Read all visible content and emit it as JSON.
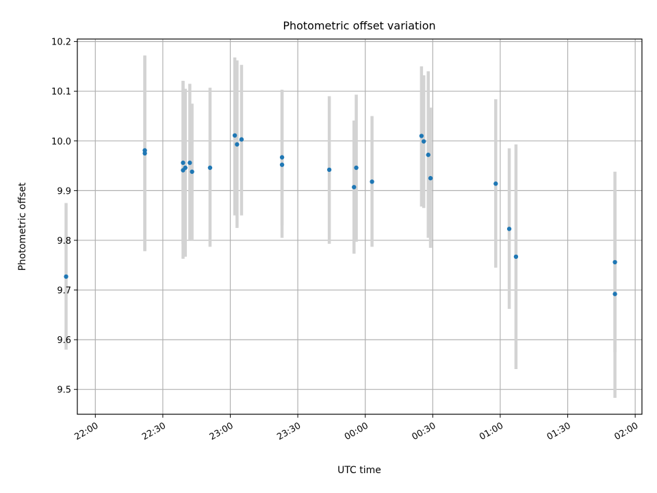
{
  "chart_data": {
    "type": "scatter",
    "title": "Photometric offset variation",
    "xlabel": "UTC time",
    "ylabel": "Photometric offset",
    "grid": true,
    "x_axis": {
      "unit": "UTC time",
      "range": [
        "21:52",
        "02:03"
      ],
      "ticks": [
        "22:00",
        "22:30",
        "23:00",
        "23:30",
        "00:00",
        "00:30",
        "01:00",
        "01:30",
        "02:00"
      ]
    },
    "y_axis": {
      "range": [
        9.45,
        10.205
      ],
      "ticks": [
        "9.5",
        "9.6",
        "9.7",
        "9.8",
        "9.9",
        "10.0",
        "10.1",
        "10.2"
      ]
    },
    "marker_color": "#1f77b4",
    "errorbar_color": "#d3d3d3",
    "points": [
      {
        "time": "21:47",
        "y": 9.727,
        "lo": 9.58,
        "hi": 9.875
      },
      {
        "time": "22:22",
        "y": 9.981,
        "lo": 9.778,
        "hi": 10.172
      },
      {
        "time": "22:22",
        "y": 9.975,
        "lo": 9.78,
        "hi": 10.17
      },
      {
        "time": "22:39",
        "y": 9.956,
        "lo": 9.793,
        "hi": 10.12
      },
      {
        "time": "22:39",
        "y": 9.941,
        "lo": 9.763,
        "hi": 10.121
      },
      {
        "time": "22:40",
        "y": 9.946,
        "lo": 9.767,
        "hi": 10.105
      },
      {
        "time": "22:42",
        "y": 9.956,
        "lo": 9.8,
        "hi": 10.115
      },
      {
        "time": "22:43",
        "y": 9.938,
        "lo": 9.8,
        "hi": 10.075
      },
      {
        "time": "22:51",
        "y": 9.946,
        "lo": 9.787,
        "hi": 10.107
      },
      {
        "time": "23:02",
        "y": 10.011,
        "lo": 9.85,
        "hi": 10.168
      },
      {
        "time": "23:03",
        "y": 9.993,
        "lo": 9.825,
        "hi": 10.162
      },
      {
        "time": "23:05",
        "y": 10.003,
        "lo": 9.85,
        "hi": 10.153
      },
      {
        "time": "23:23",
        "y": 9.967,
        "lo": 9.83,
        "hi": 10.103
      },
      {
        "time": "23:23",
        "y": 9.952,
        "lo": 9.805,
        "hi": 10.1
      },
      {
        "time": "23:44",
        "y": 9.942,
        "lo": 9.793,
        "hi": 10.09
      },
      {
        "time": "23:55",
        "y": 9.907,
        "lo": 9.773,
        "hi": 10.041
      },
      {
        "time": "23:56",
        "y": 9.946,
        "lo": 9.797,
        "hi": 10.093
      },
      {
        "time": "00:03",
        "y": 9.918,
        "lo": 9.787,
        "hi": 10.05
      },
      {
        "time": "00:25",
        "y": 10.01,
        "lo": 9.868,
        "hi": 10.15
      },
      {
        "time": "00:26",
        "y": 9.999,
        "lo": 9.865,
        "hi": 10.132
      },
      {
        "time": "00:28",
        "y": 9.972,
        "lo": 9.805,
        "hi": 10.14
      },
      {
        "time": "00:29",
        "y": 9.925,
        "lo": 9.785,
        "hi": 10.067
      },
      {
        "time": "00:58",
        "y": 9.914,
        "lo": 9.745,
        "hi": 10.084
      },
      {
        "time": "01:04",
        "y": 9.823,
        "lo": 9.662,
        "hi": 9.985
      },
      {
        "time": "01:07",
        "y": 9.767,
        "lo": 9.541,
        "hi": 9.993
      },
      {
        "time": "01:51",
        "y": 9.756,
        "lo": 9.575,
        "hi": 9.938
      },
      {
        "time": "01:51",
        "y": 9.692,
        "lo": 9.483,
        "hi": 9.9
      }
    ]
  }
}
